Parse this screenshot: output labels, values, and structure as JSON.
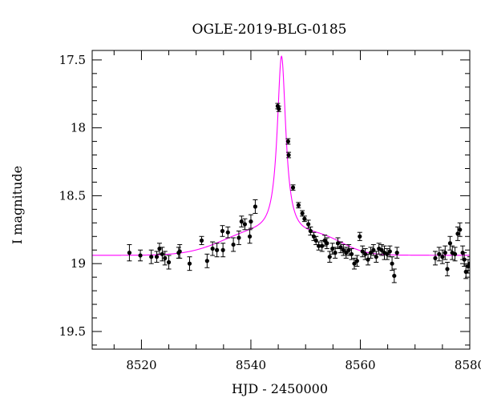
{
  "chart_data": {
    "type": "scatter",
    "title": "OGLE-2019-BLG-0185",
    "xlabel": "HJD - 2450000",
    "ylabel": "I magnitude",
    "xlim": [
      8511,
      8580
    ],
    "ylim": [
      19.63,
      17.43
    ],
    "y_inverted": true,
    "grid": false,
    "xticks": [
      8520,
      8540,
      8560,
      8580
    ],
    "xtick_labels": [
      "8520",
      "8540",
      "8560",
      "8580"
    ],
    "yticks": [
      17.5,
      18,
      18.5,
      19,
      19.5
    ],
    "ytick_labels": [
      "17.5",
      "18",
      "18.5",
      "19",
      "19.5"
    ],
    "colors": {
      "model": "#ff00ff",
      "points": "#000000"
    },
    "series": [
      {
        "type": "scatter_errorbar",
        "x": [
          8517.8,
          8519.8,
          8521.8,
          8522.8,
          8523.3,
          8523.8,
          8524.3,
          8525.0,
          8526.8,
          8527.0,
          8528.8,
          8531.0,
          8532.0,
          8533.0,
          8533.8,
          8534.8,
          8534.9,
          8535.8,
          8536.8,
          8537.8,
          8538.3,
          8538.9,
          8539.8,
          8540.0,
          8540.8,
          8544.9,
          8545.1,
          8546.8,
          8546.9,
          8547.7,
          8548.7,
          8549.4,
          8549.8,
          8550.5,
          8550.9,
          8551.5,
          8551.9,
          8552.4,
          8553.0,
          8553.5,
          8553.9,
          8554.4,
          8554.9,
          8555.4,
          8555.9,
          8556.4,
          8556.9,
          8557.4,
          8557.9,
          8558.4,
          8558.9,
          8559.4,
          8559.9,
          8560.4,
          8560.9,
          8561.4,
          8561.9,
          8562.4,
          8562.9,
          8563.4,
          8563.9,
          8564.4,
          8564.9,
          8565.4,
          8565.8,
          8566.2,
          8566.7,
          8573.7,
          8574.4,
          8575.0,
          8575.5,
          8575.9,
          8576.4,
          8576.8,
          8577.3,
          8577.8,
          8578.2,
          8578.7,
          8579.0,
          8579.3,
          8579.7,
          8580.0
        ],
        "y": [
          18.92,
          18.94,
          18.95,
          18.95,
          18.89,
          18.93,
          18.96,
          18.99,
          18.92,
          18.91,
          19.0,
          18.83,
          18.98,
          18.89,
          18.9,
          18.76,
          18.9,
          18.77,
          18.86,
          18.81,
          18.69,
          18.71,
          18.8,
          18.69,
          18.58,
          17.84,
          17.86,
          18.1,
          18.2,
          18.44,
          18.57,
          18.63,
          18.67,
          18.71,
          18.76,
          18.8,
          18.83,
          18.87,
          18.87,
          18.83,
          18.85,
          18.95,
          18.89,
          18.92,
          18.85,
          18.88,
          18.9,
          18.92,
          18.9,
          18.93,
          19.0,
          18.98,
          18.8,
          18.91,
          18.93,
          18.97,
          18.92,
          18.9,
          18.95,
          18.89,
          18.9,
          18.92,
          18.93,
          18.91,
          19.0,
          19.09,
          18.92,
          18.96,
          18.93,
          18.95,
          18.92,
          19.04,
          18.85,
          18.92,
          18.93,
          18.78,
          18.75,
          18.92,
          18.97,
          19.06,
          19.02,
          19.0
        ],
        "err": [
          0.06,
          0.04,
          0.05,
          0.04,
          0.04,
          0.05,
          0.05,
          0.05,
          0.04,
          0.05,
          0.05,
          0.03,
          0.05,
          0.05,
          0.05,
          0.04,
          0.05,
          0.04,
          0.05,
          0.05,
          0.04,
          0.04,
          0.05,
          0.05,
          0.05,
          0.02,
          0.02,
          0.02,
          0.02,
          0.02,
          0.02,
          0.02,
          0.02,
          0.03,
          0.03,
          0.03,
          0.03,
          0.03,
          0.04,
          0.04,
          0.04,
          0.04,
          0.04,
          0.04,
          0.04,
          0.04,
          0.04,
          0.04,
          0.04,
          0.04,
          0.04,
          0.04,
          0.03,
          0.04,
          0.04,
          0.04,
          0.04,
          0.04,
          0.04,
          0.04,
          0.04,
          0.05,
          0.04,
          0.04,
          0.05,
          0.05,
          0.04,
          0.05,
          0.05,
          0.05,
          0.05,
          0.05,
          0.05,
          0.05,
          0.05,
          0.05,
          0.05,
          0.05,
          0.05,
          0.05,
          0.05,
          0.05
        ]
      },
      {
        "type": "line",
        "model": {
          "baseline": 18.94,
          "t0": 8545.6,
          "peak": 17.62,
          "half_width": 0.95,
          "shoulder_amp": 0.16,
          "shoulder_center": 8541.0,
          "shoulder_width": 9.0,
          "tail_amp": 0.11,
          "tail_center": 8553.0,
          "tail_width": 6.0
        }
      }
    ]
  }
}
